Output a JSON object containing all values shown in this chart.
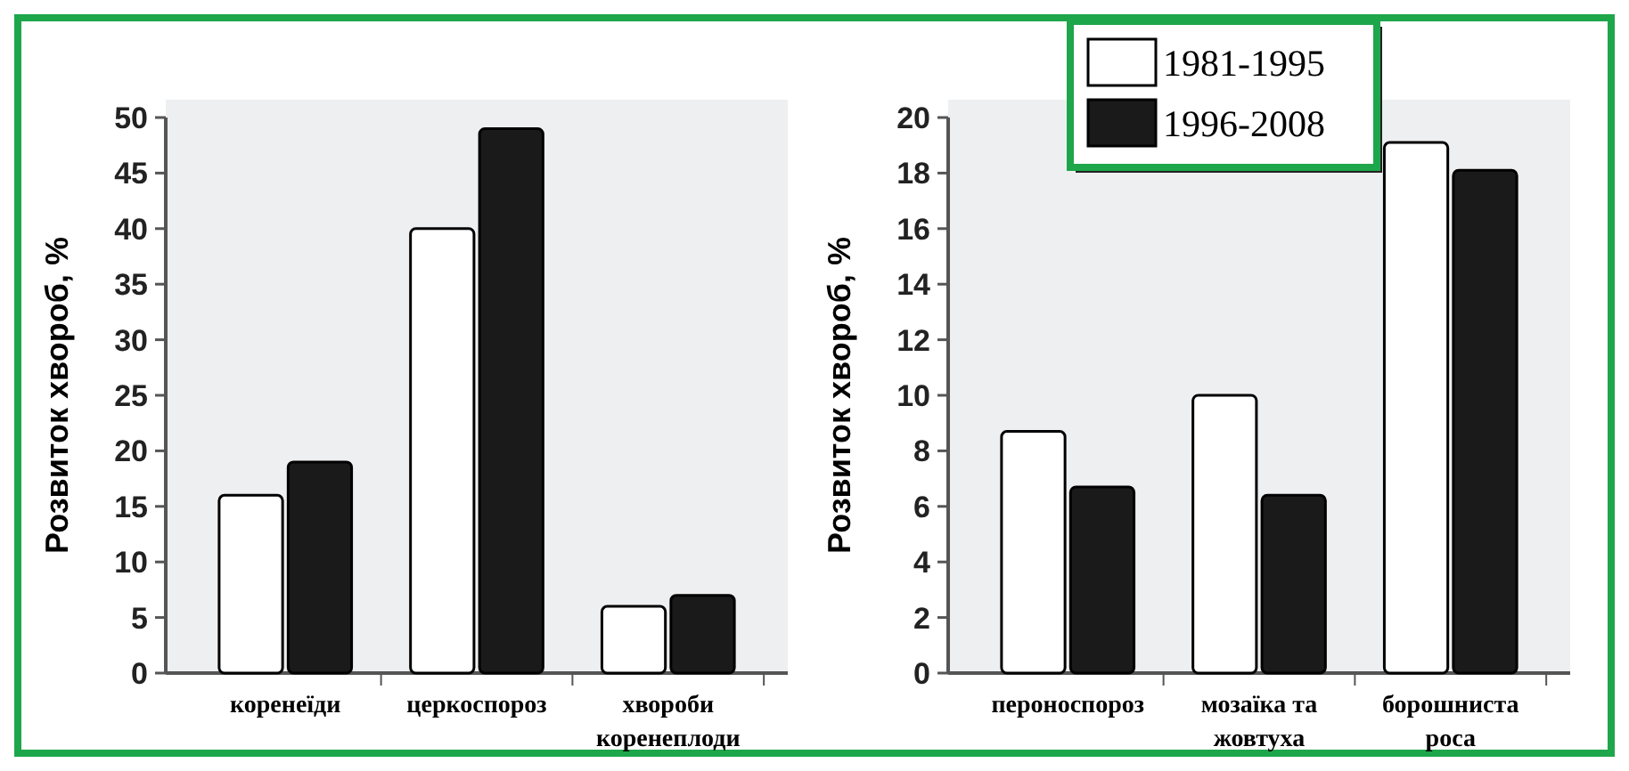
{
  "chart_data": [
    {
      "type": "bar",
      "categories": [
        "коренеїди",
        "церкоспороз",
        "хвороби\nкоренеплоди"
      ],
      "ylabel": "Розвиток хвороб, %",
      "ylim": [
        0,
        50
      ],
      "yticks": [
        0,
        5,
        10,
        15,
        20,
        25,
        30,
        35,
        40,
        45,
        50
      ],
      "legend": false,
      "series": [
        {
          "color": "#ffffff",
          "values": [
            16,
            40,
            6
          ]
        },
        {
          "color": "#1a1a1a",
          "values": [
            19,
            49,
            7
          ]
        }
      ]
    },
    {
      "type": "bar",
      "categories": [
        "пероноспороз",
        "мозаїка та\nжовтуха",
        "борошниста\nроса"
      ],
      "ylabel": "Розвиток хвороб, %",
      "ylim": [
        0,
        20
      ],
      "yticks": [
        0,
        2,
        4,
        6,
        8,
        10,
        12,
        14,
        16,
        18,
        20
      ],
      "legend": "top",
      "series": [
        {
          "name": "1981-1995",
          "color": "#ffffff",
          "values": [
            8.7,
            10,
            19.1
          ]
        },
        {
          "name": "1996-2008",
          "color": "#1a1a1a",
          "values": [
            6.7,
            6.4,
            18.1
          ]
        }
      ]
    }
  ]
}
